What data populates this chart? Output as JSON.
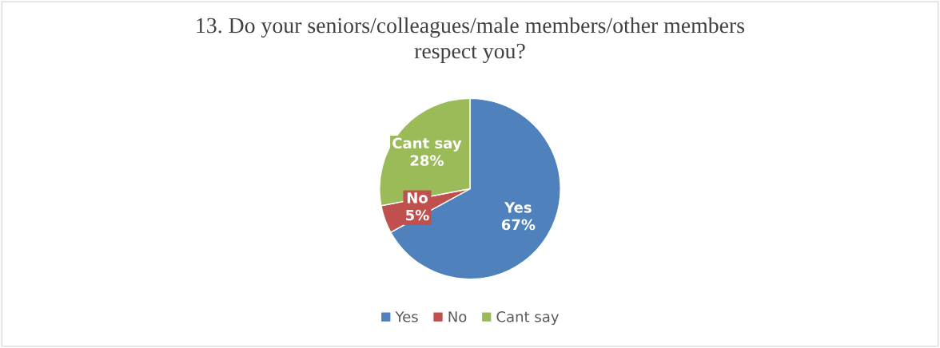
{
  "chart_data": {
    "type": "pie",
    "title": "13. Do your seniors/colleagues/male members/other members\nrespect you?",
    "categories": [
      "Yes",
      "No",
      "Cant say"
    ],
    "values": [
      67,
      5,
      28
    ],
    "colors": [
      "#4f81bd",
      "#c0504d",
      "#9bbb59"
    ],
    "value_labels": [
      "67%",
      "5%",
      "28%"
    ],
    "legend": "bottom"
  }
}
